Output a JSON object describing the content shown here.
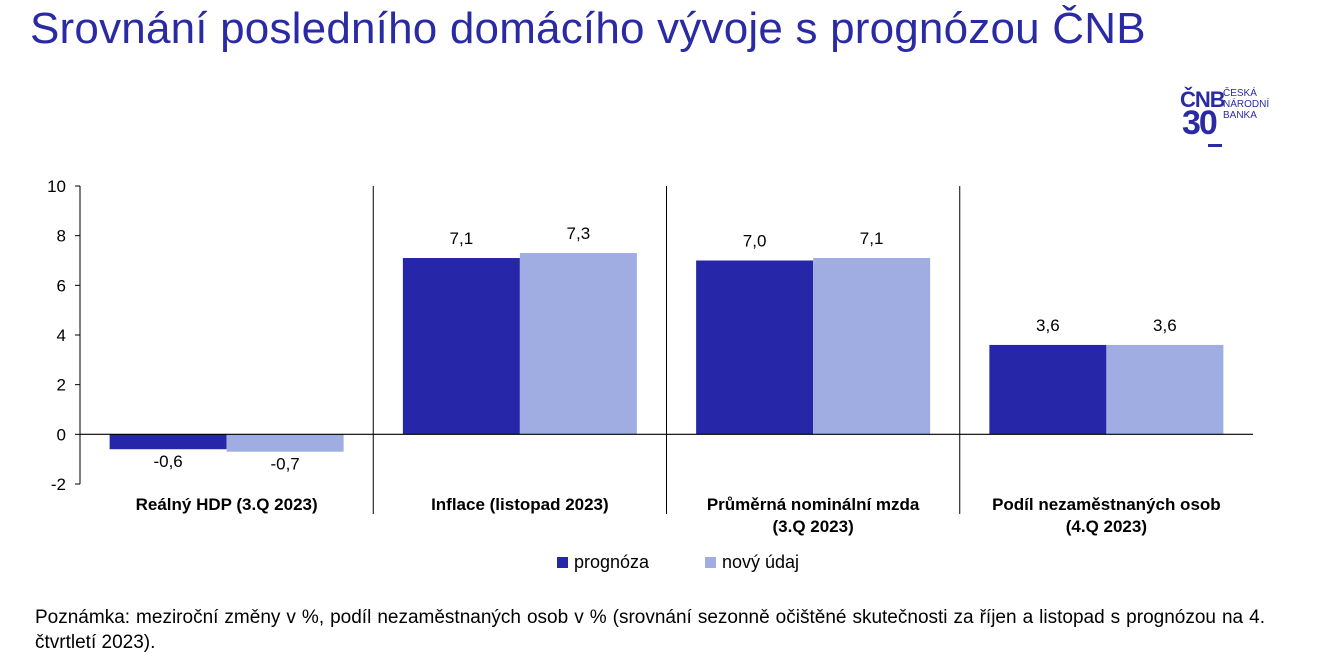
{
  "title": "Srovnání posledního domácího vývoje s prognózou ČNB",
  "logo": {
    "mark": "ČNB",
    "anniversary": "30",
    "text": "ČESKÁ NÁRODNÍ BANKA"
  },
  "note": "Poznámka: meziroční změny v %, podíl nezaměstnaných osob v % (srovnání sezonně očištěné skutečnosti za říjen a listopad s prognózou na 4. čtvrtletí 2023).",
  "colors": {
    "prognosis": "#2626a8",
    "actual": "#9fadE3",
    "title": "#2a2aa5"
  },
  "chart_data": {
    "type": "bar",
    "title": "",
    "xlabel": "",
    "ylabel": "",
    "ylim": [
      -2,
      10
    ],
    "yticks": [
      -2,
      0,
      2,
      4,
      6,
      8,
      10
    ],
    "ytick_labels": [
      "-2",
      "0",
      "2",
      "4",
      "6",
      "8",
      "10"
    ],
    "grid": false,
    "legend": "bottom-center",
    "categories": [
      [
        "Reálný HDP (3.Q 2023)"
      ],
      [
        "Inflace (listopad 2023)"
      ],
      [
        "Průměrná nominální mzda",
        "(3.Q 2023)"
      ],
      [
        "Podíl nezaměstnaných osob",
        "(4.Q 2023)"
      ]
    ],
    "series": [
      {
        "name": "prognóza",
        "values": [
          -0.6,
          7.1,
          7.0,
          3.6
        ],
        "labels": [
          "-0,6",
          "7,1",
          "7,0",
          "3,6"
        ]
      },
      {
        "name": "nový údaj",
        "values": [
          -0.7,
          7.3,
          7.1,
          3.6
        ],
        "labels": [
          "-0,7",
          "7,3",
          "7,1",
          "3,6"
        ]
      }
    ]
  }
}
